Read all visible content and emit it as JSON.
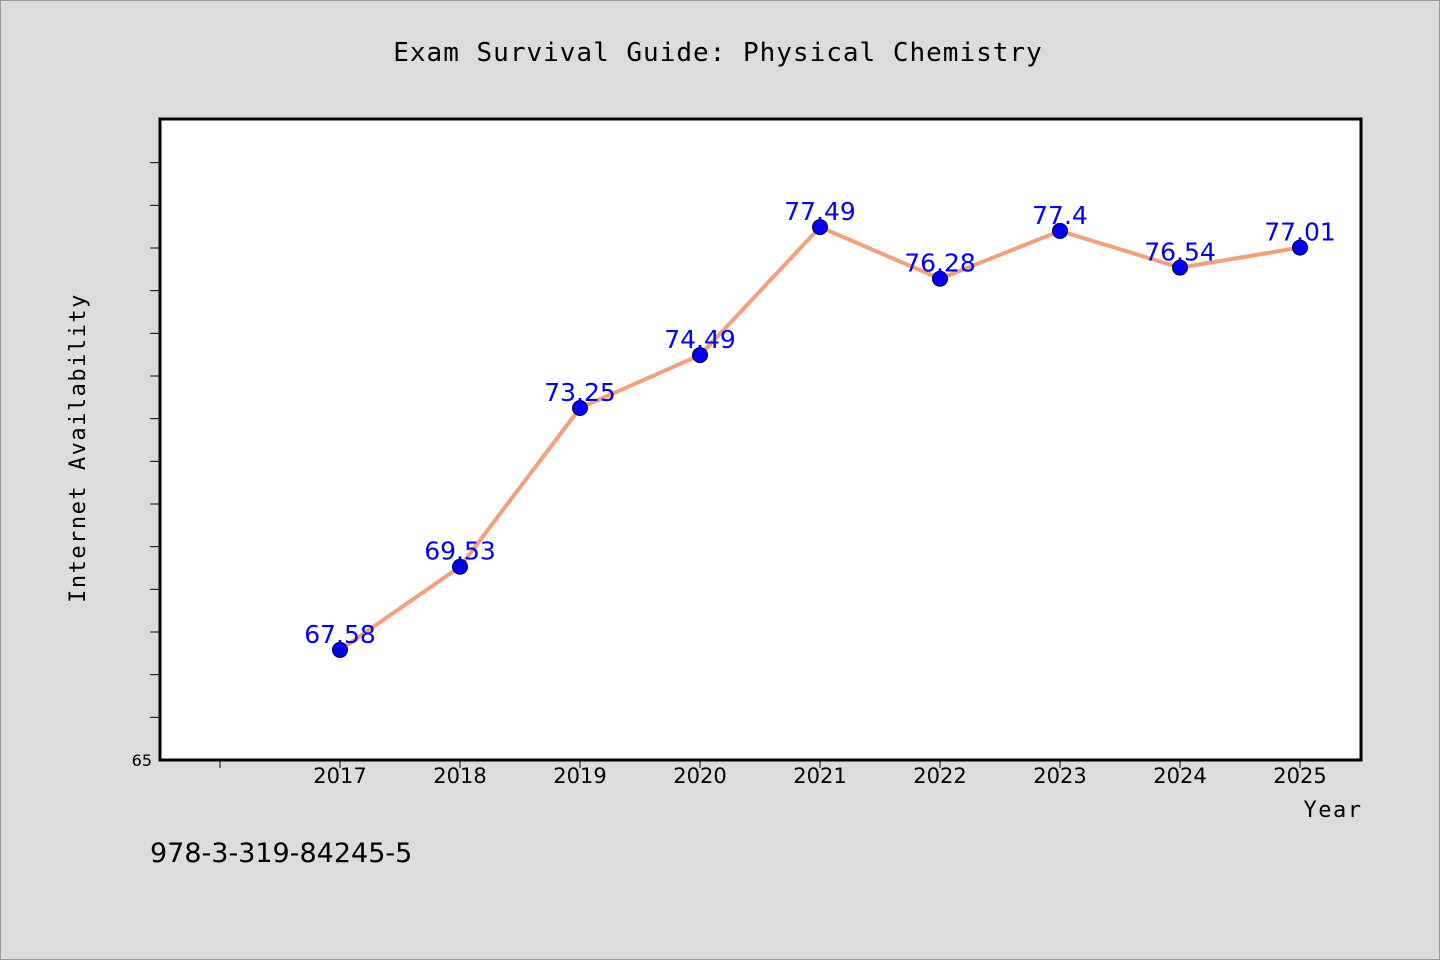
{
  "chart_data": {
    "type": "line",
    "title": "Exam Survival Guide: Physical Chemistry",
    "xlabel": "Year",
    "ylabel": "Internet Availability",
    "categories": [
      "2017",
      "2018",
      "2019",
      "2020",
      "2021",
      "2022",
      "2023",
      "2024",
      "2025"
    ],
    "series": [
      {
        "values": [
          67.58,
          69.53,
          73.25,
          74.49,
          77.49,
          76.28,
          77.4,
          76.54,
          77.01
        ],
        "data_labels": [
          "67.58",
          "69.53",
          "73.25",
          "74.49",
          "77.49",
          "76.28",
          "77.4",
          "76.54",
          "77.01"
        ],
        "line_color": "#f4a07a",
        "marker_color": "#0000ff"
      }
    ],
    "ylim": [
      65,
      80
    ],
    "y_tick_label": "65",
    "grid": false,
    "legend": "none"
  },
  "footer": {
    "identifier": "978-3-319-84245-5"
  },
  "colors": {
    "background": "#dcdcdc",
    "plot_background": "#ffffff",
    "line": "#f4a07a",
    "marker": "#0000ff",
    "data_label": "#0000ff"
  }
}
